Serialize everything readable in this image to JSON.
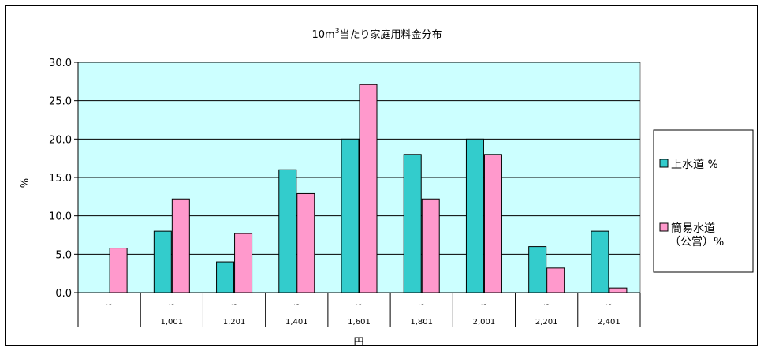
{
  "chart_data": {
    "type": "bar",
    "title": "10m³当たり家庭用料金分布",
    "title_parts": {
      "pre": "10m",
      "sup": "3",
      "post": "当たり家庭用料金分布"
    },
    "ylabel": "%",
    "xlabel": "円",
    "ylim": [
      0,
      30
    ],
    "yticks": [
      "0.0",
      "5.0",
      "10.0",
      "15.0",
      "20.0",
      "25.0",
      "30.0"
    ],
    "category_symbol": "~",
    "categories": [
      "",
      "1,001",
      "1,201",
      "1,401",
      "1,601",
      "1,801",
      "2,001",
      "2,201",
      "2,401"
    ],
    "series": [
      {
        "name": "上水道 %",
        "color": "#33cccc",
        "values": [
          0,
          8,
          4,
          16,
          20,
          18,
          20,
          6,
          8
        ]
      },
      {
        "name": "簡易水道（公営）%",
        "color": "#ff99cc",
        "values": [
          5.8,
          12.2,
          7.7,
          12.9,
          27.1,
          12.2,
          18.0,
          3.2,
          0.6
        ]
      }
    ],
    "legend_lines": [
      [
        "上水道 %"
      ],
      [
        "簡易水道",
        "（公営）%"
      ]
    ],
    "plot_background": "#ccffff",
    "grid": true,
    "legend_position": "right"
  }
}
